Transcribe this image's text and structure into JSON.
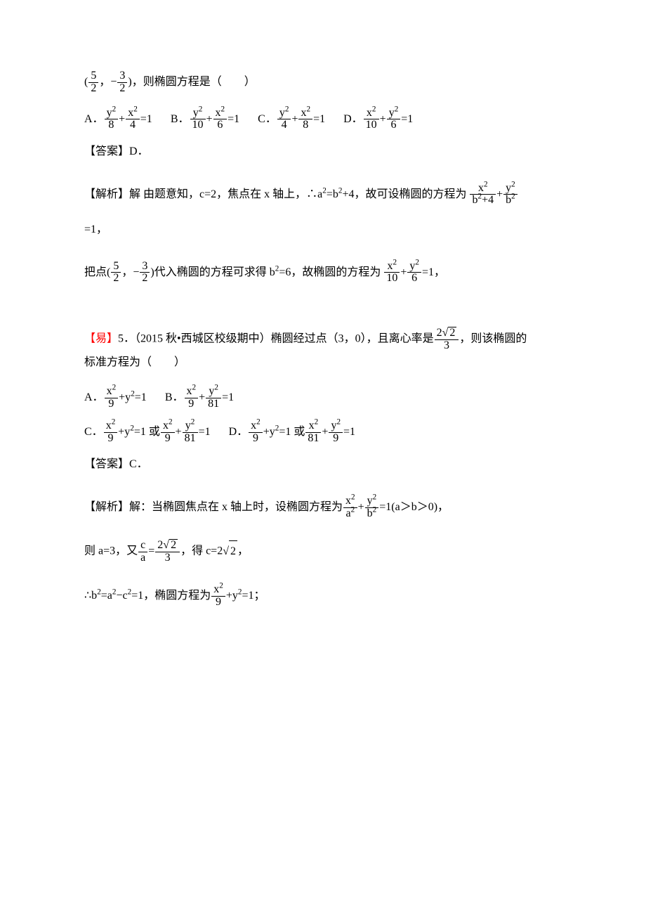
{
  "q4": {
    "line1_pre": "(",
    "frac1_num": "5",
    "frac1_den": "2",
    "line1_mid": "，−",
    "frac2_num": "3",
    "frac2_den": "2",
    "line1_post": ")，则椭圆方程是（　　）",
    "optA_lab": "A．",
    "optA_f1n": "y",
    "optA_f1d": "8",
    "optA_f2n": "x",
    "optA_f2d": "4",
    "optB_lab": "B．",
    "optB_f1n": "y",
    "optB_f1d": "10",
    "optB_f2n": "x",
    "optB_f2d": "6",
    "optC_lab": "C．",
    "optC_f1n": "y",
    "optC_f1d": "4",
    "optC_f2n": "x",
    "optC_f2d": "8",
    "optD_lab": "D．",
    "optD_f1n": "x",
    "optD_f1d": "10",
    "optD_f2n": "y",
    "optD_f2d": "6",
    "eq1": "=1",
    "answer": "【答案】D．",
    "exp1_pre": "【解析】解 由题意知，c=2，焦点在 x 轴上，∴a",
    "exp1_mid1": "=b",
    "exp1_mid2": "+4，故可设椭圆的方程为 ",
    "exp1_f1n": "x",
    "exp1_f1d_a": "b",
    "exp1_f1d_b": "+4",
    "exp1_f2n": "y",
    "exp1_f2d": "b",
    "exp1_tail": "=1，",
    "exp2_pre": "把点(",
    "exp2_mid1": "，−",
    "exp2_mid2": ")代入椭圆的方程可求得 b",
    "exp2_mid3": "=6，故椭圆的方程为 ",
    "exp2_f1n": "x",
    "exp2_f1d": "10",
    "exp2_f2n": "y",
    "exp2_f2d": "6",
    "exp2_tail": "=1，"
  },
  "q5": {
    "diff": "【易】",
    "num_src": "5．（2015 秋•西城区校级期中）椭圆经过点（3，0），且离心率是",
    "ecc_num_a": "2",
    "ecc_num_b": "2",
    "ecc_den": "3",
    "after_ecc": "，则该椭圆的",
    "line2": "标准方程为（　　）",
    "optA_lab": "A．",
    "optA_fn": "x",
    "optA_fd": "9",
    "optA_tail": "+y",
    "optA_tail2": "=1",
    "optB_lab": "B．",
    "optB_f1n": "x",
    "optB_f1d": "9",
    "optB_f2n": "y",
    "optB_f2d": "81",
    "optC_lab": "C．",
    "optC_f1n": "x",
    "optC_f1d": "9",
    "optC_mid": "+y",
    "optC_mid2": "=1 或",
    "optC_f2n": "x",
    "optC_f2d": "9",
    "optC_f3n": "y",
    "optC_f3d": "81",
    "optD_lab": "D．",
    "optD_f1n": "x",
    "optD_f1d": "9",
    "optD_mid": "+y",
    "optD_mid2": "=1 或",
    "optD_f2n": "x",
    "optD_f2d": "81",
    "optD_f3n": "y",
    "optD_f3d": "9",
    "eq1": "=1",
    "answer": "【答案】C．",
    "exp1_pre": "【解析】解：当椭圆焦点在 x 轴上时，设椭圆方程为",
    "exp1_f1n": "x",
    "exp1_f1d": "a",
    "exp1_f2n": "y",
    "exp1_f2d": "b",
    "exp1_tail": "=1(a＞b＞0)，",
    "exp2_pre": "则 a=3，又",
    "exp2_frac_cn": "c",
    "exp2_frac_cd": "a",
    "exp2_eq": "=",
    "exp2_eccn_a": "2",
    "exp2_eccn_b": "2",
    "exp2_eccd": "3",
    "exp2_mid": "，得 c=2",
    "exp2_rad": "2",
    "exp2_tail": "，",
    "exp3_pre": "∴b",
    "exp3_mid1": "=a",
    "exp3_mid2": "−c",
    "exp3_mid3": "=1，椭圆方程为",
    "exp3_f1n": "x",
    "exp3_f1d": "9",
    "exp3_mid4": "+y",
    "exp3_tail": "=1；"
  },
  "sup2": "2"
}
